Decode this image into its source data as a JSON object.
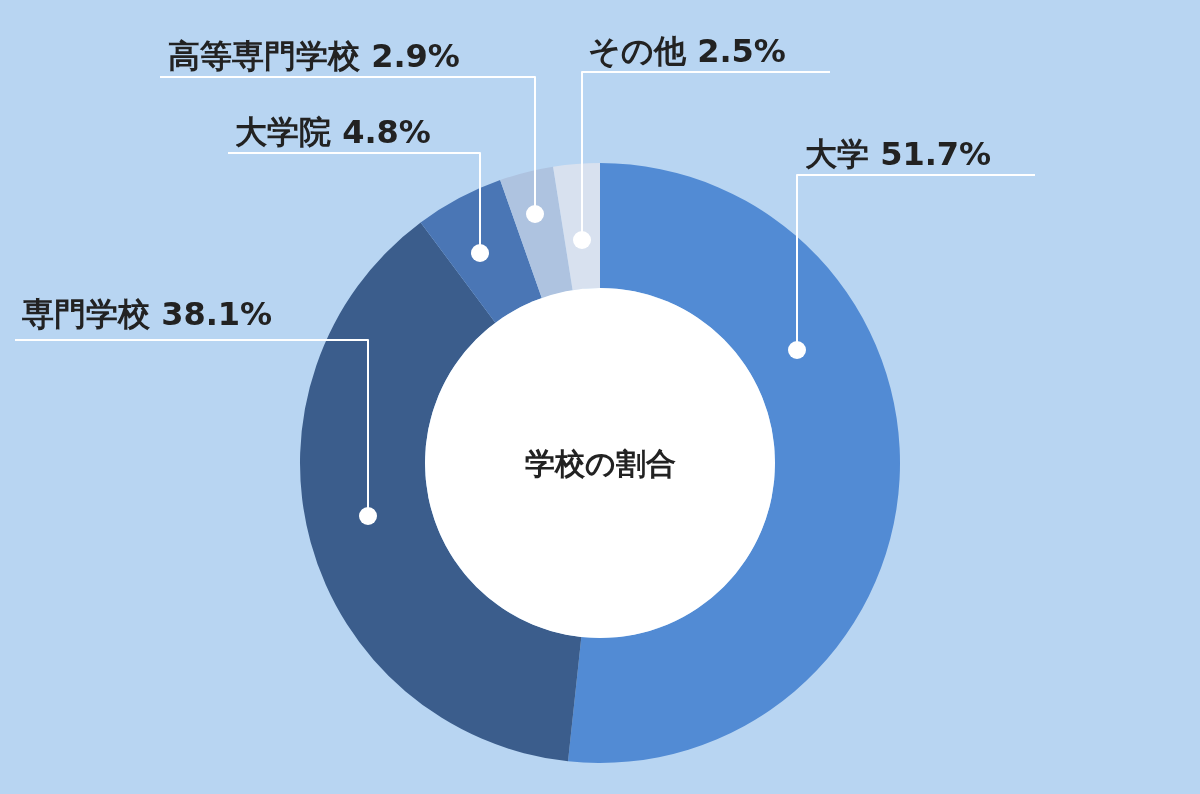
{
  "chart_data": {
    "type": "donut",
    "title": "学校の割合",
    "categories": [
      "大学",
      "専門学校",
      "大学院",
      "高等専門学校",
      "その他"
    ],
    "values": [
      51.7,
      38.1,
      4.8,
      2.9,
      2.5
    ],
    "value_labels": [
      "51.7%",
      "38.1%",
      "4.8%",
      "2.9%",
      "2.5%"
    ],
    "colors": [
      "#528bd4",
      "#3b5d8c",
      "#4a76b5",
      "#aec3e0",
      "#d8e1ef"
    ]
  }
}
